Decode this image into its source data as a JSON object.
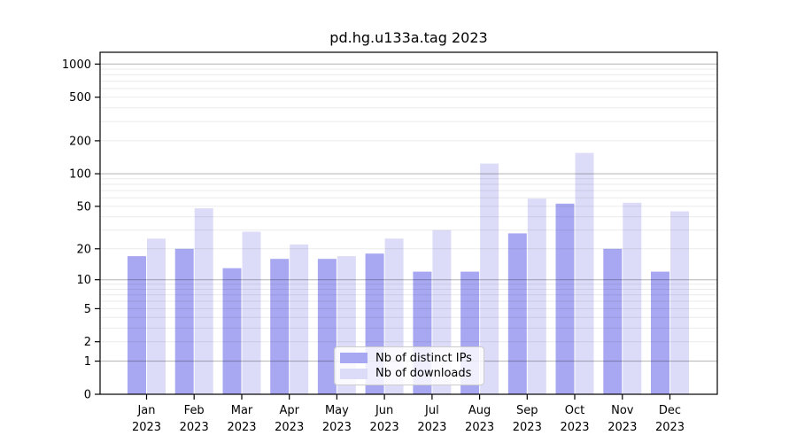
{
  "title": "pd.hg.u133a.tag 2023",
  "colors": {
    "distinct_ips": "#a8a8f2",
    "downloads": "#dcdcf8",
    "grid_major": "rgba(0,0,0,0.30)",
    "grid_minor": "rgba(0,0,0,0.08)",
    "axis": "#000000"
  },
  "legend": {
    "position": "lower center",
    "items": [
      {
        "label": "Nb of distinct IPs",
        "color_key": "distinct_ips"
      },
      {
        "label": "Nb of downloads",
        "color_key": "downloads"
      }
    ]
  },
  "chart_data": {
    "type": "bar",
    "title": "pd.hg.u133a.tag 2023",
    "categories": [
      "Jan 2023",
      "Feb 2023",
      "Mar 2023",
      "Apr 2023",
      "May 2023",
      "Jun 2023",
      "Jul 2023",
      "Aug 2023",
      "Sep 2023",
      "Oct 2023",
      "Nov 2023",
      "Dec 2023"
    ],
    "series": [
      {
        "name": "Nb of distinct IPs",
        "values": [
          17,
          20,
          13,
          16,
          16,
          18,
          12,
          12,
          28,
          53,
          20,
          12
        ]
      },
      {
        "name": "Nb of downloads",
        "values": [
          25,
          48,
          29,
          22,
          17,
          25,
          30,
          124,
          59,
          155,
          54,
          45
        ]
      }
    ],
    "xlabel": "",
    "ylabel": "",
    "y_scale": "log1p",
    "y_ticks": [
      0,
      1,
      2,
      5,
      10,
      20,
      50,
      100,
      200,
      500,
      1000
    ],
    "ylim": [
      0,
      1280
    ],
    "grid": "minor and major horizontal gridlines drawn above bars",
    "legend_position": "lower center"
  }
}
